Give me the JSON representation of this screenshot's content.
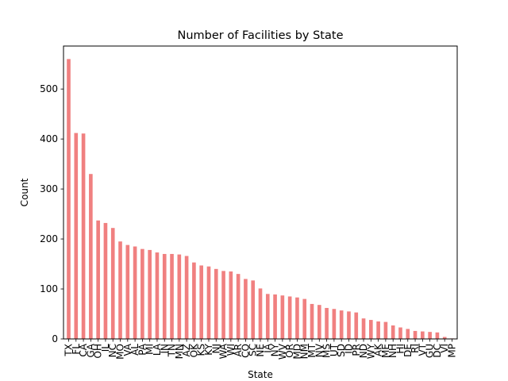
{
  "chart_data": {
    "type": "bar",
    "title": "Number of Facilities by State",
    "xlabel": "State",
    "ylabel": "Count",
    "ylim": [
      0,
      586
    ],
    "yticks": [
      0,
      100,
      200,
      300,
      400,
      500
    ],
    "grid": false,
    "bar_color": "#f08080",
    "categories": [
      "TX",
      "FL",
      "CA",
      "GA",
      "OH",
      "IL",
      "NC",
      "MO",
      "VA",
      "AL",
      "PA",
      "MI",
      "LA",
      "IN",
      "TN",
      "MN",
      "AZ",
      "OK",
      "KS",
      "KY",
      "NJ",
      "WA",
      "WI",
      "AR",
      "CO",
      "SC",
      "NE",
      "IA",
      "NY",
      "WV",
      "OR",
      "MD",
      "NM",
      "MT",
      "NV",
      "MS",
      "UT",
      "SD",
      "ID",
      "PR",
      "ND",
      "WY",
      "AK",
      "ME",
      "NH",
      "HI",
      "DE",
      "RI",
      "VT",
      "GU",
      "DC",
      "VI",
      "MP"
    ],
    "values": [
      560,
      412,
      411,
      330,
      237,
      232,
      222,
      195,
      188,
      185,
      180,
      178,
      173,
      170,
      170,
      169,
      166,
      153,
      147,
      145,
      140,
      136,
      135,
      130,
      120,
      117,
      101,
      90,
      89,
      87,
      85,
      83,
      80,
      70,
      68,
      62,
      60,
      57,
      55,
      53,
      41,
      38,
      35,
      34,
      27,
      23,
      20,
      16,
      15,
      14,
      13,
      4,
      1
    ]
  }
}
